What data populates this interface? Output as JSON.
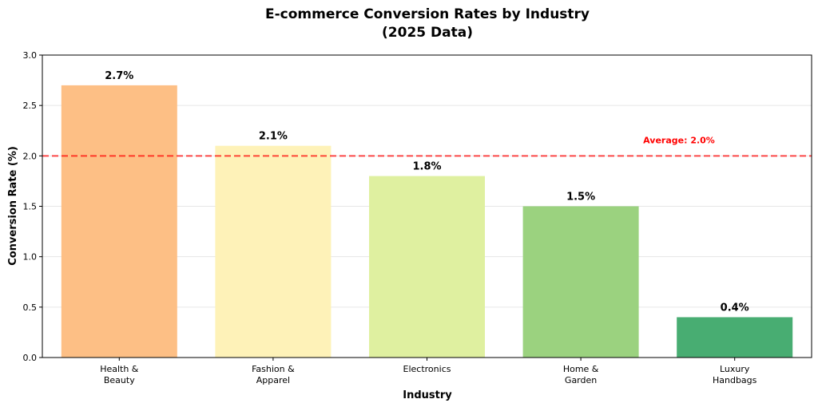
{
  "chart_data": {
    "type": "bar",
    "title_line1": "E-commerce Conversion Rates by Industry",
    "title_line2": "(2025 Data)",
    "xlabel": "Industry",
    "ylabel": "Conversion Rate (%)",
    "ylim": [
      0,
      3.0
    ],
    "yticks": [
      "0.0",
      "0.5",
      "1.0",
      "1.5",
      "2.0",
      "2.5",
      "3.0"
    ],
    "grid": "horizontal",
    "categories": [
      [
        "Health &",
        "Beauty"
      ],
      [
        "Fashion &",
        "Apparel"
      ],
      [
        "Electronics"
      ],
      [
        "Home &",
        "Garden"
      ],
      [
        "Luxury",
        "Handbags"
      ]
    ],
    "values": [
      2.7,
      2.1,
      1.8,
      1.5,
      0.4
    ],
    "value_labels": [
      "2.7%",
      "2.1%",
      "1.8%",
      "1.5%",
      "0.4%"
    ],
    "colors": [
      "#fdbf85",
      "#fef2b8",
      "#dff0a0",
      "#9bd27f",
      "#48ad72"
    ],
    "average": {
      "value": 2.0,
      "label": "Average: 2.0%",
      "color": "#ff0000"
    }
  }
}
